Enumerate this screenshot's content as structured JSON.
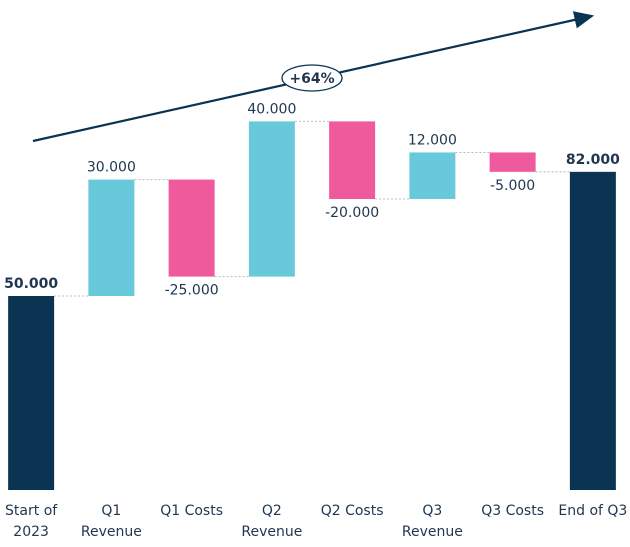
{
  "chart_data": {
    "type": "waterfall",
    "categories": [
      "Start of 2023",
      "Q1 Revenue",
      "Q1 Costs",
      "Q2 Revenue",
      "Q2 Costs",
      "Q3 Revenue",
      "Q3 Costs",
      "End of Q3"
    ],
    "values": [
      50000,
      30000,
      -25000,
      40000,
      -20000,
      12000,
      -5000,
      82000
    ],
    "value_labels": [
      "50.000",
      "30.000",
      "-25.000",
      "40.000",
      "-20.000",
      "12.000",
      "-5.000",
      "82.000"
    ],
    "measures": [
      "total",
      "relative",
      "relative",
      "relative",
      "relative",
      "relative",
      "relative",
      "total"
    ],
    "colors": {
      "total": "#0b3352",
      "increase": "#68c9db",
      "decrease": "#ee5a9b"
    },
    "ylim": [
      0,
      125000
    ],
    "annotation": "+64%"
  }
}
